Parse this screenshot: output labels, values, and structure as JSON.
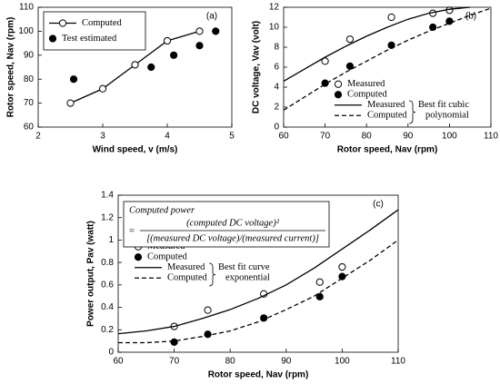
{
  "chart_data": [
    {
      "type": "line",
      "panel_label": "(a)",
      "x_label": "Wind speed, v (m/s)",
      "y_label": "Rotor speed, Nav (rpm)",
      "xlim": [
        2,
        5
      ],
      "xticks": [
        2,
        3,
        4,
        5
      ],
      "ylim": [
        60,
        110
      ],
      "yticks": [
        60,
        70,
        80,
        90,
        100,
        110
      ],
      "legend": "top-left",
      "series": [
        {
          "name": "Computed",
          "color": "#000000",
          "line": "solid",
          "marker": "open",
          "x": [
            2.5,
            3,
            3.5,
            4,
            4.5
          ],
          "values": [
            70,
            76,
            86,
            96,
            100
          ]
        },
        {
          "name": "Test estimated",
          "color": "#000000",
          "line": "none",
          "marker": "filled",
          "x": [
            2.55,
            3.75,
            4.1,
            4.5,
            4.75
          ],
          "values": [
            80,
            85,
            90,
            94,
            100
          ]
        }
      ]
    },
    {
      "type": "line",
      "panel_label": "(b)",
      "x_label": "Rotor speed, Nav (rpm)",
      "y_label": "DC voltage, Vav (volt)",
      "xlim": [
        60,
        110
      ],
      "xticks": [
        60,
        70,
        80,
        90,
        100,
        110
      ],
      "ylim": [
        0,
        12
      ],
      "yticks": [
        0,
        2,
        4,
        6,
        8,
        10,
        12
      ],
      "legend": "bottom-right",
      "fit_note": [
        "Best fit cubic",
        "polynomial"
      ],
      "series": [
        {
          "name": "Measured",
          "color": "#000000",
          "line": "none",
          "marker": "open",
          "x": [
            70,
            76,
            86,
            96,
            100
          ],
          "values": [
            6.6,
            8.8,
            11,
            11.4,
            11.7
          ]
        },
        {
          "name": "Computed",
          "color": "#000000",
          "line": "none",
          "marker": "filled",
          "x": [
            70,
            76,
            86,
            96,
            100
          ],
          "values": [
            4.4,
            6.1,
            8.2,
            10,
            10.6
          ]
        },
        {
          "name": "Measured",
          "color": "#000000",
          "line": "solid",
          "marker": "none",
          "x": [
            60,
            65,
            70,
            75,
            80,
            85,
            90,
            95,
            100,
            105
          ],
          "values": [
            4.6,
            5.8,
            7.0,
            8.1,
            9.1,
            10.0,
            10.8,
            11.4,
            11.8,
            12
          ]
        },
        {
          "name": "Computed",
          "color": "#000000",
          "line": "dashed",
          "marker": "none",
          "x": [
            60,
            65,
            70,
            75,
            80,
            85,
            90,
            95,
            100,
            105,
            110
          ],
          "values": [
            1.7,
            3.0,
            4.3,
            5.5,
            6.6,
            7.7,
            8.7,
            9.6,
            10.4,
            11.2,
            11.9
          ]
        }
      ]
    },
    {
      "type": "line",
      "panel_label": "(c)",
      "x_label": "Rotor speed, Nav (rpm)",
      "y_label": "Power output, Pav (watt)",
      "xlim": [
        60,
        110
      ],
      "xticks": [
        60,
        70,
        80,
        90,
        100,
        110
      ],
      "ylim": [
        0,
        1.4
      ],
      "yticks": [
        0,
        0.2,
        0.4,
        0.6,
        0.8,
        1,
        1.2,
        1.4
      ],
      "legend": "center-left",
      "fit_note": [
        "Best fit curve",
        "exponential"
      ],
      "formula": {
        "title": "Computed power",
        "equals": "=",
        "numerator": "(computed DC voltage)²",
        "denominator": "[(measured DC voltage)/(measured current)]"
      },
      "series": [
        {
          "name": "Measured",
          "color": "#000000",
          "line": "none",
          "marker": "open",
          "x": [
            70,
            76,
            86,
            96,
            100
          ],
          "values": [
            0.23,
            0.375,
            0.52,
            0.625,
            0.76
          ]
        },
        {
          "name": "Computed",
          "color": "#000000",
          "line": "none",
          "marker": "filled",
          "x": [
            70,
            76,
            86,
            96,
            100
          ],
          "values": [
            0.09,
            0.16,
            0.305,
            0.495,
            0.675
          ]
        },
        {
          "name": "Measured",
          "color": "#000000",
          "line": "solid",
          "marker": "none",
          "x": [
            60,
            65,
            70,
            75,
            80,
            85,
            90,
            95,
            100,
            105,
            110
          ],
          "values": [
            0.165,
            0.19,
            0.23,
            0.3,
            0.38,
            0.48,
            0.6,
            0.75,
            0.92,
            1.09,
            1.27
          ]
        },
        {
          "name": "Computed",
          "color": "#000000",
          "line": "dashed",
          "marker": "none",
          "x": [
            60,
            65,
            70,
            75,
            80,
            85,
            90,
            95,
            100,
            105,
            110
          ],
          "values": [
            0.085,
            0.085,
            0.1,
            0.14,
            0.19,
            0.27,
            0.38,
            0.5,
            0.66,
            0.82,
            1.0
          ]
        }
      ]
    }
  ]
}
